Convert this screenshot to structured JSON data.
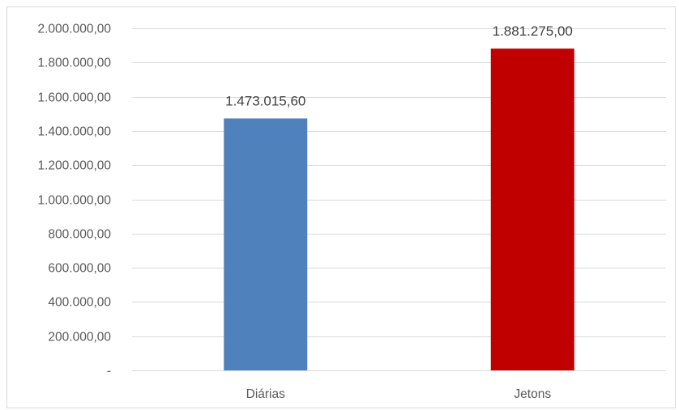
{
  "chart_data": {
    "type": "bar",
    "categories": [
      "Diárias",
      "Jetons"
    ],
    "values": [
      1473015.6,
      1881275.0
    ],
    "value_labels": [
      "1.473.015,60",
      "1.881.275,00"
    ],
    "bar_colors": [
      "#4f81bd",
      "#c00000"
    ],
    "ylim": [
      0,
      2000000
    ],
    "yticks": [
      0,
      200000,
      400000,
      600000,
      800000,
      1000000,
      1200000,
      1400000,
      1600000,
      1800000,
      2000000
    ],
    "ytick_labels": [
      "-",
      "200.000,00",
      "400.000,00",
      "600.000,00",
      "800.000,00",
      "1.000.000,00",
      "1.200.000,00",
      "1.400.000,00",
      "1.600.000,00",
      "1.800.000,00",
      "2.000.000,00"
    ],
    "grid": true,
    "legend": "none",
    "title": "",
    "xlabel": "",
    "ylabel": ""
  }
}
